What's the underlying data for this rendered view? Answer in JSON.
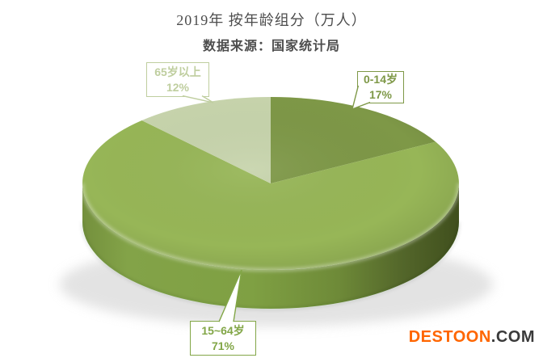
{
  "page": {
    "background": "#FFFFFF"
  },
  "chart_data": {
    "type": "pie",
    "style": "3d",
    "title": "2019年 按年龄组分（万人）",
    "subtitle": "数据来源：国家统计局",
    "start_angle_deg": 0,
    "direction": "clockwise",
    "legend": "none",
    "unit": "%",
    "categories": [
      "0-14岁",
      "15~64岁",
      "65岁以上"
    ],
    "values": [
      17,
      71,
      12
    ],
    "slices": [
      {
        "label": "0-14岁",
        "value_pct": 17,
        "color": "#7E9847",
        "callout": {
          "line1": "0-14岁",
          "line2": "17%",
          "accent": "#7E9847"
        }
      },
      {
        "label": "15~64岁",
        "value_pct": 71,
        "color": "#97B657",
        "callout": {
          "line1": "15~64岁",
          "line2": "71%",
          "accent": "#82A647"
        }
      },
      {
        "label": "65岁以上",
        "value_pct": 12,
        "color": "#C7D4AC",
        "callout": {
          "line1": "65岁以上",
          "line2": "12%",
          "accent": "#BFCE9F"
        }
      }
    ]
  },
  "watermark": {
    "brand": "DESTOON",
    "suffix": ".COM",
    "brand_color": "#FF6600",
    "suffix_color": "#3A3A3A"
  }
}
